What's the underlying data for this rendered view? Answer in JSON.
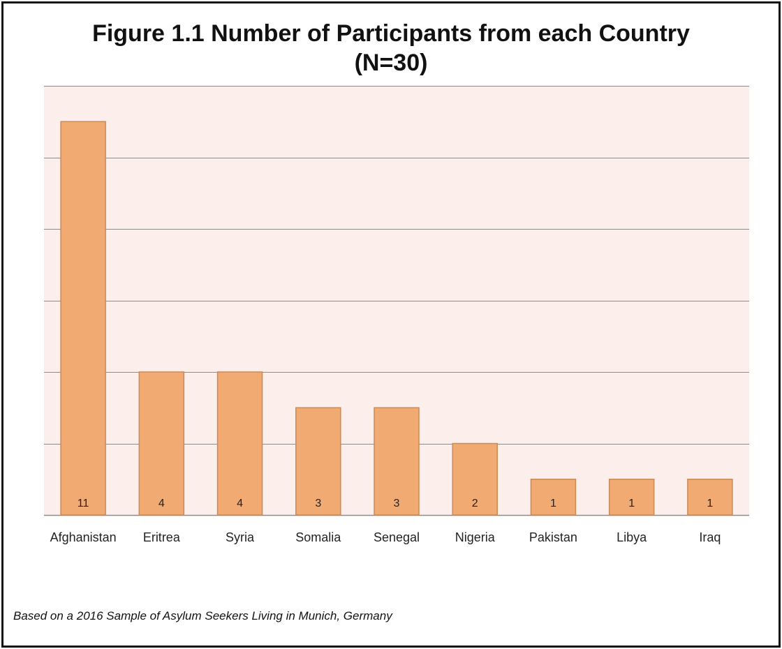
{
  "chart_data": {
    "type": "bar",
    "title": "Figure 1.1 Number of Participants from each Country",
    "subtitle": "(N=30)",
    "categories": [
      "Afghanistan",
      "Eritrea",
      "Syria",
      "Somalia",
      "Senegal",
      "Nigeria",
      "Pakistan",
      "Libya",
      "Iraq"
    ],
    "values": [
      11,
      4,
      4,
      3,
      3,
      2,
      1,
      1,
      1
    ],
    "xlabel": "",
    "ylabel": "",
    "ylim": [
      0,
      12
    ],
    "grid": true,
    "legend": "none",
    "colors": {
      "bar_fill": "#f2aa73",
      "bar_stroke": "#c98a5a",
      "plot_background": "#fcefeb",
      "gridline": "#8c8c8c"
    }
  },
  "footnote": "Based on a 2016 Sample of Asylum Seekers Living in Munich, Germany"
}
